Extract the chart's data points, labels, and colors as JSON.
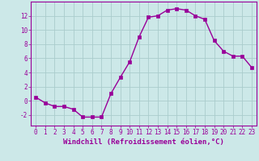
{
  "x": [
    0,
    1,
    2,
    3,
    4,
    5,
    6,
    7,
    8,
    9,
    10,
    11,
    12,
    13,
    14,
    15,
    16,
    17,
    18,
    19,
    20,
    21,
    22,
    23
  ],
  "y": [
    0.5,
    -0.3,
    -0.8,
    -0.8,
    -1.2,
    -2.3,
    -2.3,
    -2.3,
    1.0,
    3.3,
    5.5,
    9.0,
    11.8,
    12.0,
    12.8,
    13.0,
    12.8,
    12.0,
    11.5,
    8.5,
    7.0,
    6.3,
    6.3,
    4.7
  ],
  "line_color": "#990099",
  "marker_color": "#990099",
  "bg_color": "#cce8e8",
  "grid_color": "#aacccc",
  "xlabel": "Windchill (Refroidissement éolien,°C)",
  "xlabel_color": "#990099",
  "tick_color": "#990099",
  "spine_color": "#990099",
  "xlim": [
    -0.5,
    23.5
  ],
  "ylim": [
    -3.5,
    14.0
  ],
  "yticks": [
    -2,
    0,
    2,
    4,
    6,
    8,
    10,
    12
  ],
  "xticks": [
    0,
    1,
    2,
    3,
    4,
    5,
    6,
    7,
    8,
    9,
    10,
    11,
    12,
    13,
    14,
    15,
    16,
    17,
    18,
    19,
    20,
    21,
    22,
    23
  ],
  "tick_fontsize": 5.5,
  "xlabel_fontsize": 6.5,
  "marker_size": 2.5,
  "line_width": 1.0
}
